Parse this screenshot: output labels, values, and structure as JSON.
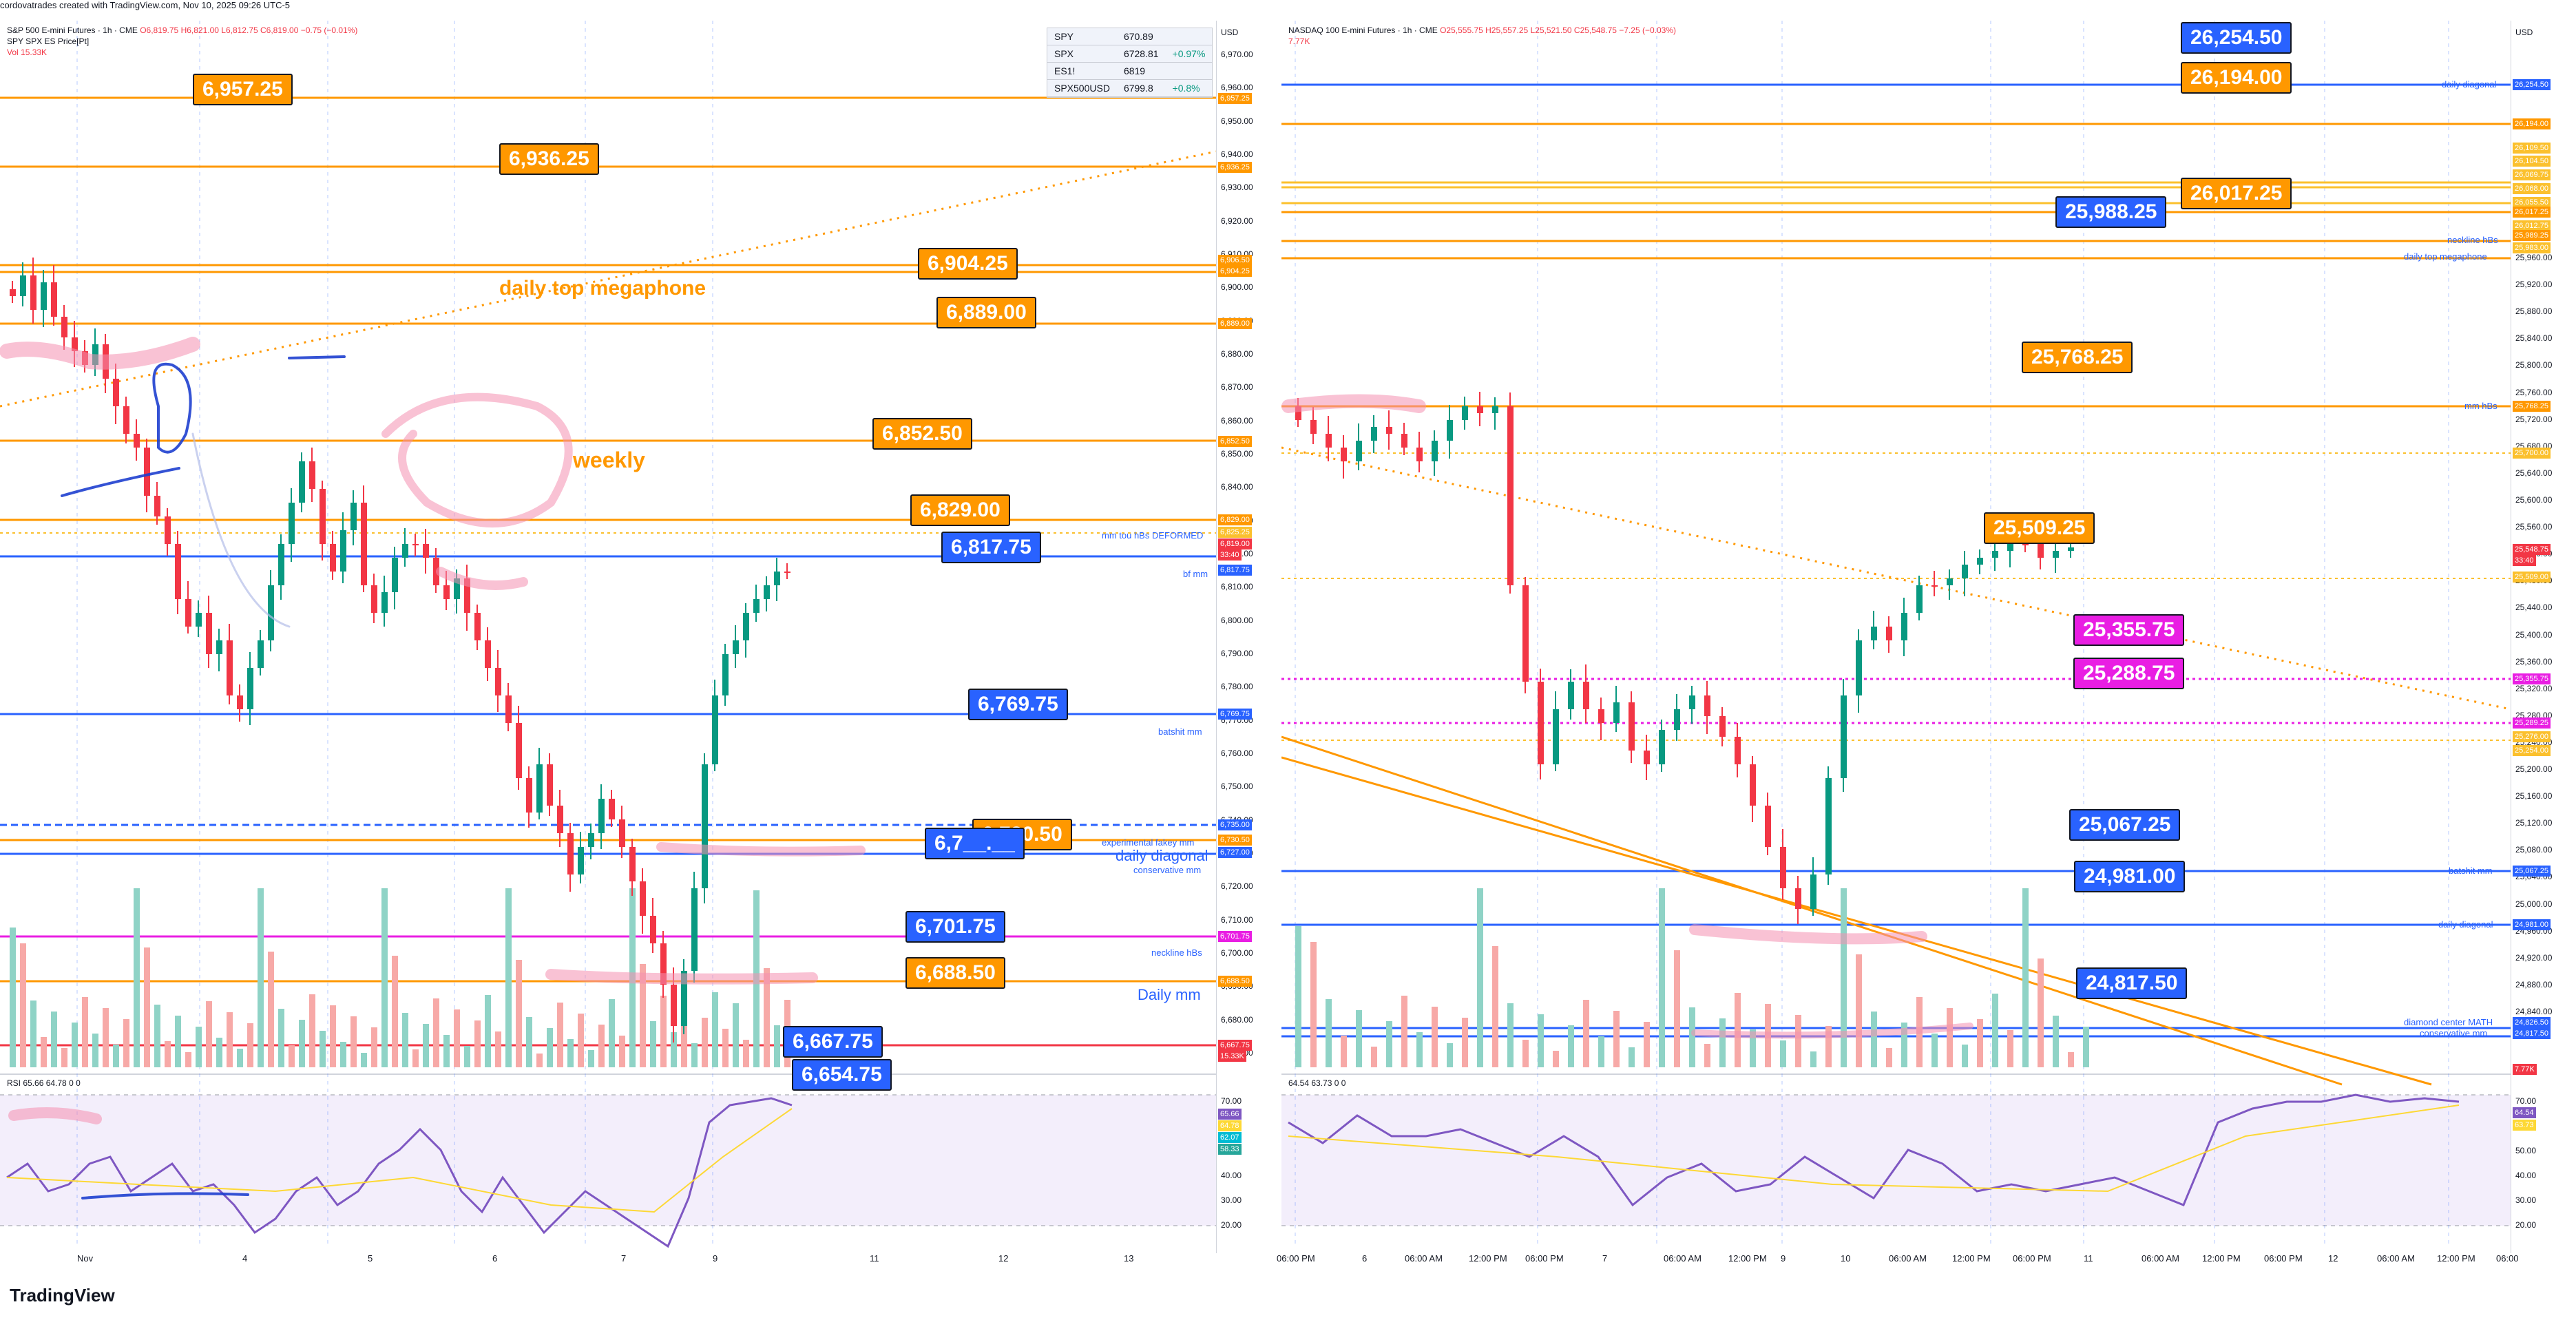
{
  "header": {
    "created": "cordovatrades created with TradingView.com, Nov 10, 2025 09:26 UTC-5"
  },
  "brand": "TradingView",
  "left_chart": {
    "symbol": "S&P 500 E-mini Futures · 1h · CME",
    "ohlc": "O6,819.75 H6,821.00 L6,812.75 C6,819.00 −0.75 (−0.01%)",
    "sub1": "SPY SPX ES Price[Pt]",
    "sub2": "Vol 15.33K",
    "currency": "USD",
    "rsi_label": "RSI 65.66",
    "rsi_extra": "64.78  0  0",
    "ticks": [
      "6,970.00",
      "6,960.00",
      "6,950.00",
      "6,940.00",
      "6,930.00",
      "6,920.00",
      "6,910.00",
      "6,900.00",
      "6,890.00",
      "6,880.00",
      "6,870.00",
      "6,860.00",
      "6,850.00",
      "6,840.00",
      "6,830.00",
      "6,820.00",
      "6,810.00",
      "6,800.00",
      "6,790.00",
      "6,780.00",
      "6,770.00",
      "6,760.00",
      "6,750.00",
      "6,740.00",
      "6,730.00",
      "6,720.00",
      "6,710.00",
      "6,700.00",
      "6,690.00",
      "6,680.00",
      "6,670.00"
    ],
    "rsi_ticks": [
      "70.00",
      "60.00",
      "50.00",
      "40.00",
      "30.00",
      "20.00"
    ],
    "rsi_axis_labels": [
      {
        "text": "65.66",
        "color": "#7e57c2"
      },
      {
        "text": "64.78",
        "color": "#fdd835"
      },
      {
        "text": "62.07",
        "color": "#00bcd4"
      },
      {
        "text": "58.33",
        "color": "#26a69a"
      }
    ],
    "axis_labels": [
      {
        "text": "6,957.25",
        "color": "#ff9800"
      },
      {
        "text": "6,936.25",
        "color": "#ff9800"
      },
      {
        "text": "6,906.50",
        "color": "#ff9800"
      },
      {
        "text": "6,904.25",
        "color": "#ff9800"
      },
      {
        "text": "6,889.00",
        "color": "#ff9800"
      },
      {
        "text": "6,852.50",
        "color": "#ff9800"
      },
      {
        "text": "6,829.00",
        "color": "#ff9800"
      },
      {
        "text": "6,825.25",
        "color": "#fbc02d"
      },
      {
        "text": "6,819.00",
        "color": "#f23645"
      },
      {
        "text": "33:40",
        "color": "#f23645"
      },
      {
        "text": "6,817.75",
        "color": "#2962ff"
      },
      {
        "text": "6,769.75",
        "color": "#2962ff"
      },
      {
        "text": "6,735.00",
        "color": "#2962ff"
      },
      {
        "text": "6,730.50",
        "color": "#ff9800"
      },
      {
        "text": "6,727.00",
        "color": "#2962ff"
      },
      {
        "text": "6,701.75",
        "color": "#e91ee3"
      },
      {
        "text": "6,688.50",
        "color": "#ff9800"
      },
      {
        "text": "6,667.75",
        "color": "#f23645"
      },
      {
        "text": "15.33K",
        "color": "#f23645"
      }
    ],
    "callouts": [
      {
        "text": "6,957.25",
        "style": "or"
      },
      {
        "text": "6,936.25",
        "style": "or"
      },
      {
        "text": "6,904.25",
        "style": "or"
      },
      {
        "text": "6,889.00",
        "style": "or"
      },
      {
        "text": "6,852.50",
        "style": "or"
      },
      {
        "text": "6,829.00",
        "style": "or"
      },
      {
        "text": "6,817.75",
        "style": "bl"
      },
      {
        "text": "6,769.75",
        "style": "bl"
      },
      {
        "text": "6,730.50",
        "style": "or"
      },
      {
        "text": "6,7__.__",
        "style": "bl"
      },
      {
        "text": "6,701.75",
        "style": "bl"
      },
      {
        "text": "6,688.50",
        "style": "or"
      },
      {
        "text": "6,667.75",
        "style": "bl"
      },
      {
        "text": "6,654.75",
        "style": "bl"
      }
    ],
    "line_labels": {
      "megaphone": "daily top megaphone",
      "weekly": "weekly",
      "mm_deformed": "mm tou hBs DEFORMED",
      "bf_mm": "bf mm",
      "batshit": "batshit mm",
      "fakey": "experimental fakey mm",
      "daily_diagonal": "daily diagonal",
      "conservative": "conservative mm",
      "neckline": "neckline hBs",
      "daily_mm": "Daily mm"
    },
    "x_labels": [
      "Nov",
      "4",
      "5",
      "6",
      "7",
      "9",
      "11",
      "12",
      "13"
    ]
  },
  "watchlist": [
    {
      "sym": "SPY",
      "price": "670.89",
      "chg": ""
    },
    {
      "sym": "SPX",
      "price": "6728.81",
      "chg": "+0.97%"
    },
    {
      "sym": "ES1!",
      "price": "6819",
      "chg": ""
    },
    {
      "sym": "SPX500USD",
      "price": "6799.8",
      "chg": "+0.8%"
    }
  ],
  "right_chart": {
    "symbol": "NASDAQ 100 E-mini Futures · 1h · CME",
    "ohlc": "O25,555.75 H25,557.25 L25,521.50 C25,548.75 −7.25 (−0.03%)",
    "sub1": "7.77K",
    "currency": "USD",
    "rsi_label": "64.54",
    "rsi_extra": "63.73  0  0",
    "ticks": [
      "25,960.00",
      "25,920.00",
      "25,880.00",
      "25,840.00",
      "25,800.00",
      "25,760.00",
      "25,720.00",
      "25,680.00",
      "25,640.00",
      "25,600.00",
      "25,560.00",
      "25,520.00",
      "25,480.00",
      "25,440.00",
      "25,400.00",
      "25,360.00",
      "25,320.00",
      "25,280.00",
      "25,240.00",
      "25,200.00",
      "25,160.00",
      "25,120.00",
      "25,080.00",
      "25,040.00",
      "25,000.00",
      "24,960.00",
      "24,920.00",
      "24,880.00",
      "24,840.00"
    ],
    "rsi_ticks": [
      "70.00",
      "60.00",
      "50.00",
      "40.00",
      "30.00",
      "20.00"
    ],
    "rsi_axis_labels": [
      {
        "text": "64.54",
        "color": "#7e57c2"
      },
      {
        "text": "63.73",
        "color": "#fdd835"
      }
    ],
    "axis_labels": [
      {
        "text": "26,254.50",
        "color": "#2962ff"
      },
      {
        "text": "26,194.00",
        "color": "#ff9800"
      },
      {
        "text": "26,109.50",
        "color": "#fbc02d"
      },
      {
        "text": "26,104.50",
        "color": "#fbc02d"
      },
      {
        "text": "26,069.75",
        "color": "#fbc02d"
      },
      {
        "text": "26,068.00",
        "color": "#fbc02d"
      },
      {
        "text": "26,055.50",
        "color": "#fbc02d"
      },
      {
        "text": "26,017.25",
        "color": "#ff9800"
      },
      {
        "text": "26,012.75",
        "color": "#fbc02d"
      },
      {
        "text": "25,989.25",
        "color": "#ff9800"
      },
      {
        "text": "25,983.00",
        "color": "#fbc02d"
      },
      {
        "text": "25,768.25",
        "color": "#ff9800"
      },
      {
        "text": "25,700.00",
        "color": "#fbc02d"
      },
      {
        "text": "25,548.75",
        "color": "#f23645"
      },
      {
        "text": "33:40",
        "color": "#f23645"
      },
      {
        "text": "25,509.00",
        "color": "#fbc02d"
      },
      {
        "text": "25,355.75",
        "color": "#e91ee3"
      },
      {
        "text": "25,289.25",
        "color": "#e91ee3"
      },
      {
        "text": "25,276.00",
        "color": "#fbc02d"
      },
      {
        "text": "25,254.00",
        "color": "#fbc02d"
      },
      {
        "text": "25,067.25",
        "color": "#2962ff"
      },
      {
        "text": "24,981.00",
        "color": "#2962ff"
      },
      {
        "text": "24,826.50",
        "color": "#2962ff"
      },
      {
        "text": "24,817.50",
        "color": "#2962ff"
      },
      {
        "text": "7.77K",
        "color": "#f23645"
      }
    ],
    "callouts": [
      {
        "text": "26,254.50",
        "style": "bl"
      },
      {
        "text": "26,194.00",
        "style": "or"
      },
      {
        "text": "26,017.25",
        "style": "or"
      },
      {
        "text": "25,988.25",
        "style": "bl"
      },
      {
        "text": "25,768.25",
        "style": "or"
      },
      {
        "text": "25,509.25",
        "style": "or"
      },
      {
        "text": "25,355.75",
        "style": "mg"
      },
      {
        "text": "25,288.75",
        "style": "mg"
      },
      {
        "text": "25,067.25",
        "style": "bl"
      },
      {
        "text": "24,981.00",
        "style": "bl"
      },
      {
        "text": "24,817.50",
        "style": "bl"
      }
    ],
    "line_labels": {
      "daily_diagonal_top": "daily diagonal",
      "neckline": "neckline hBs",
      "megaphone": "daily top megaphone",
      "mm_hbs": "mm hBs",
      "batshit": "batshit mm",
      "daily_diagonal": "daily diagonal",
      "diamond": "diamond center MATH",
      "conservative": "conservative mm"
    },
    "x_labels": [
      "06:00 PM",
      "6",
      "06:00 AM",
      "12:00 PM",
      "06:00 PM",
      "7",
      "06:00 AM",
      "12:00 PM",
      "9",
      "10",
      "06:00 AM",
      "12:00 PM",
      "06:00 PM",
      "11",
      "06:00 AM",
      "12:00 PM",
      "06:00 PM",
      "12",
      "06:00 AM",
      "12:00 PM",
      "06:00"
    ]
  }
}
